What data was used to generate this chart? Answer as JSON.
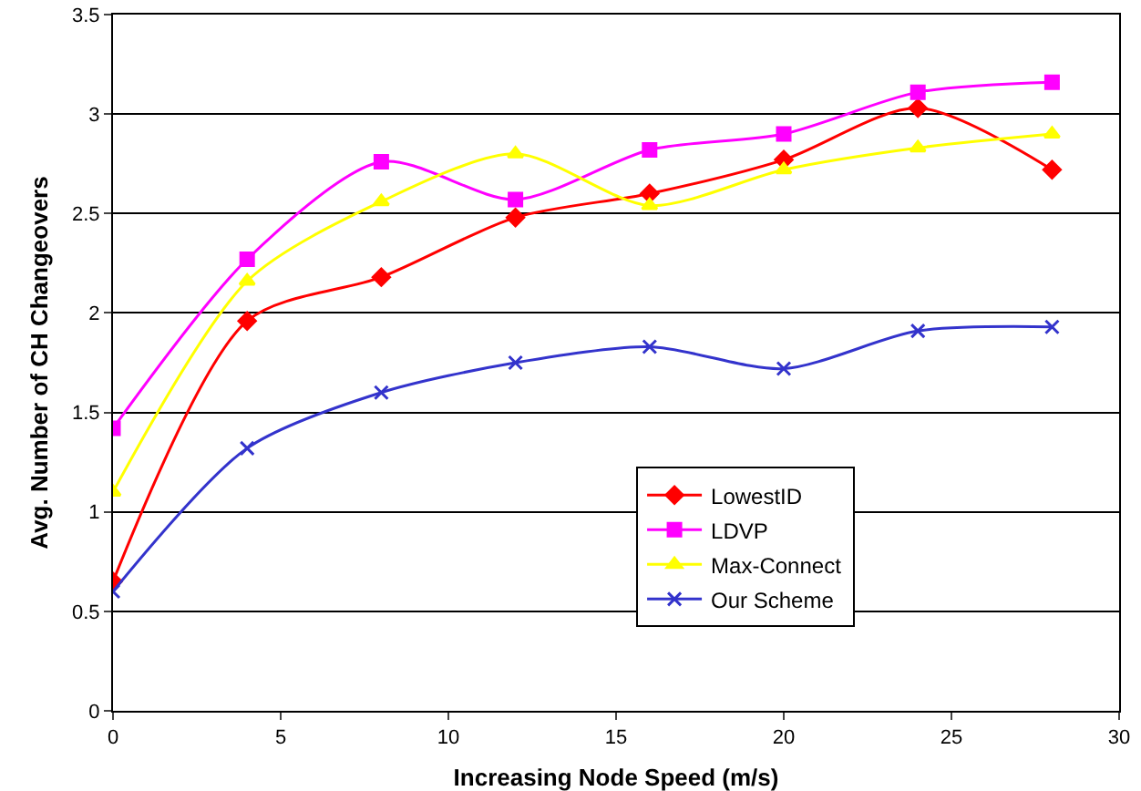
{
  "chart_data": {
    "type": "line",
    "xlabel": "Increasing Node Speed (m/s)",
    "ylabel": "Avg. Number of CH Changeovers",
    "x": [
      0,
      4,
      8,
      12,
      16,
      20,
      24,
      28
    ],
    "series": [
      {
        "name": "LowestID",
        "color": "#ff0000",
        "marker": "diamond",
        "values": [
          0.65,
          1.96,
          2.18,
          2.48,
          2.6,
          2.77,
          3.03,
          2.72
        ]
      },
      {
        "name": "LDVP",
        "color": "#ff00ff",
        "marker": "square",
        "values": [
          1.42,
          2.27,
          2.76,
          2.57,
          2.82,
          2.9,
          3.11,
          3.16
        ]
      },
      {
        "name": "Max-Connect",
        "color": "#ffff00",
        "marker": "triangle",
        "values": [
          1.1,
          2.16,
          2.56,
          2.8,
          2.54,
          2.72,
          2.83,
          2.9
        ]
      },
      {
        "name": "Our Scheme",
        "color": "#3333cc",
        "marker": "cross",
        "values": [
          0.6,
          1.32,
          1.6,
          1.75,
          1.83,
          1.72,
          1.91,
          1.93
        ]
      }
    ],
    "xlim": [
      0,
      30
    ],
    "xticks": [
      0,
      5,
      10,
      15,
      20,
      25,
      30
    ],
    "ylim": [
      0,
      3.5
    ],
    "yticks": [
      0,
      0.5,
      1,
      1.5,
      2,
      2.5,
      3,
      3.5
    ],
    "grid": "y",
    "legend": "bottom right"
  }
}
